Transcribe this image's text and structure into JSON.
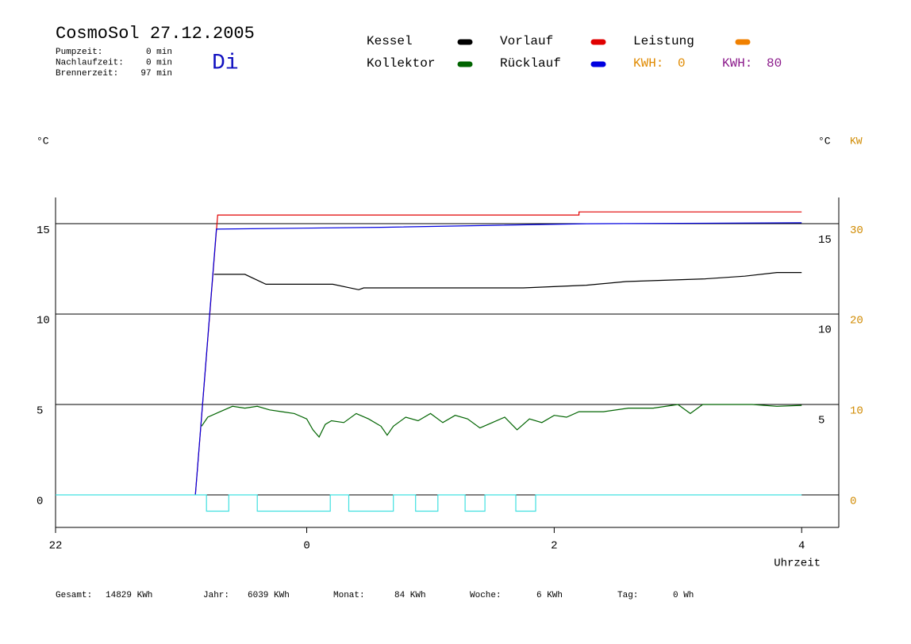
{
  "chart_data": {
    "type": "line",
    "title": "CosmoSol 27.12.2005",
    "day": "Di",
    "info": [
      {
        "label": "Pumpzeit:",
        "value": "0 min"
      },
      {
        "label": "Nachlaufzeit:",
        "value": "0 min"
      },
      {
        "label": "Brennerzeit:",
        "value": "97 min"
      }
    ],
    "y_label": "°C",
    "y2_label_left": "°C",
    "y2_label": "KW",
    "x_label": "Uhrzeit",
    "kwh": [
      {
        "label": "KWH:",
        "value": 0,
        "color": "#e08a00"
      },
      {
        "label": "KWH:",
        "value": 80,
        "color": "#8b1a8b"
      }
    ],
    "xlim": [
      -2.03,
      4.3
    ],
    "xticks": [
      {
        "value": -2.03,
        "label": "22"
      },
      0,
      2,
      4
    ],
    "ylim": [
      -1.8,
      16.45
    ],
    "yticks": [
      0,
      5,
      10,
      15
    ],
    "y2lim": [
      -3.6,
      32.9
    ],
    "y2ticks": [
      0,
      10,
      20,
      30
    ],
    "y2_color": "#d08a00",
    "grid": true,
    "series": [
      {
        "name": "Kessel",
        "color": "#000000",
        "x": [
          -0.75,
          -0.5,
          -0.33,
          0.21,
          0.42,
          0.46,
          1.75,
          2.26,
          2.58,
          3.22,
          3.54,
          3.8,
          4.0
        ],
        "values": [
          12.2,
          12.2,
          11.65,
          11.65,
          11.35,
          11.45,
          11.45,
          11.6,
          11.8,
          11.95,
          12.1,
          12.3,
          12.3
        ]
      },
      {
        "name": "Kollektor",
        "color": "#006400",
        "x": [
          -0.85,
          -0.8,
          -0.7,
          -0.6,
          -0.5,
          -0.4,
          -0.3,
          -0.2,
          -0.1,
          0,
          0.05,
          0.1,
          0.15,
          0.2,
          0.3,
          0.4,
          0.5,
          0.6,
          0.65,
          0.7,
          0.8,
          0.9,
          1.0,
          1.1,
          1.2,
          1.3,
          1.4,
          1.5,
          1.6,
          1.7,
          1.8,
          1.9,
          2.0,
          2.1,
          2.2,
          2.4,
          2.6,
          2.8,
          3.0,
          3.1,
          3.2,
          3.4,
          3.6,
          3.8,
          4.0
        ],
        "values": [
          3.8,
          4.3,
          4.6,
          4.9,
          4.8,
          4.9,
          4.7,
          4.6,
          4.5,
          4.2,
          3.6,
          3.2,
          3.9,
          4.1,
          4.0,
          4.5,
          4.2,
          3.8,
          3.3,
          3.8,
          4.3,
          4.1,
          4.5,
          4.0,
          4.4,
          4.2,
          3.7,
          4.0,
          4.3,
          3.6,
          4.2,
          4.0,
          4.4,
          4.3,
          4.6,
          4.6,
          4.8,
          4.8,
          5.0,
          4.5,
          5.0,
          5.0,
          5.0,
          4.9,
          4.95
        ]
      },
      {
        "name": "Vorlauf",
        "color": "#e00000",
        "x": [
          -0.9,
          -0.72,
          2.2,
          2.2,
          4.0
        ],
        "values": [
          0,
          15.48,
          15.48,
          15.65,
          15.65
        ]
      },
      {
        "name": "Rücklauf",
        "color": "#0000e0",
        "x": [
          -0.9,
          -0.73,
          0.6,
          2.26,
          4.0
        ],
        "values": [
          0,
          14.7,
          14.8,
          15.0,
          15.05
        ]
      },
      {
        "name": "Leistung",
        "color": "#f08000",
        "x": [],
        "values": []
      },
      {
        "color": "#40e0e0",
        "x": [
          -2.03,
          -0.81,
          -0.81,
          -0.63,
          -0.63,
          -0.4,
          -0.4,
          0.19,
          0.19,
          0.34,
          0.34,
          0.7,
          0.7,
          0.88,
          0.88,
          1.06,
          1.06,
          1.28,
          1.28,
          1.44,
          1.44,
          1.69,
          1.69,
          1.85,
          1.85,
          4.0
        ],
        "values": [
          0,
          0,
          -0.9,
          -0.9,
          0,
          0,
          -0.9,
          -0.9,
          0,
          0,
          -0.9,
          -0.9,
          0,
          0,
          -0.9,
          -0.9,
          0,
          0,
          -0.9,
          -0.9,
          0,
          0,
          -0.9,
          -0.9,
          0,
          0
        ]
      }
    ],
    "stats": [
      {
        "label": "Gesamt:",
        "value": "14829 KWh"
      },
      {
        "label": "Jahr:",
        "value": "6039 KWh"
      },
      {
        "label": "Monat:",
        "value": "84 KWh"
      },
      {
        "label": "Woche:",
        "value": "6 KWh"
      },
      {
        "label": "Tag:",
        "value": "0 Wh"
      }
    ]
  }
}
